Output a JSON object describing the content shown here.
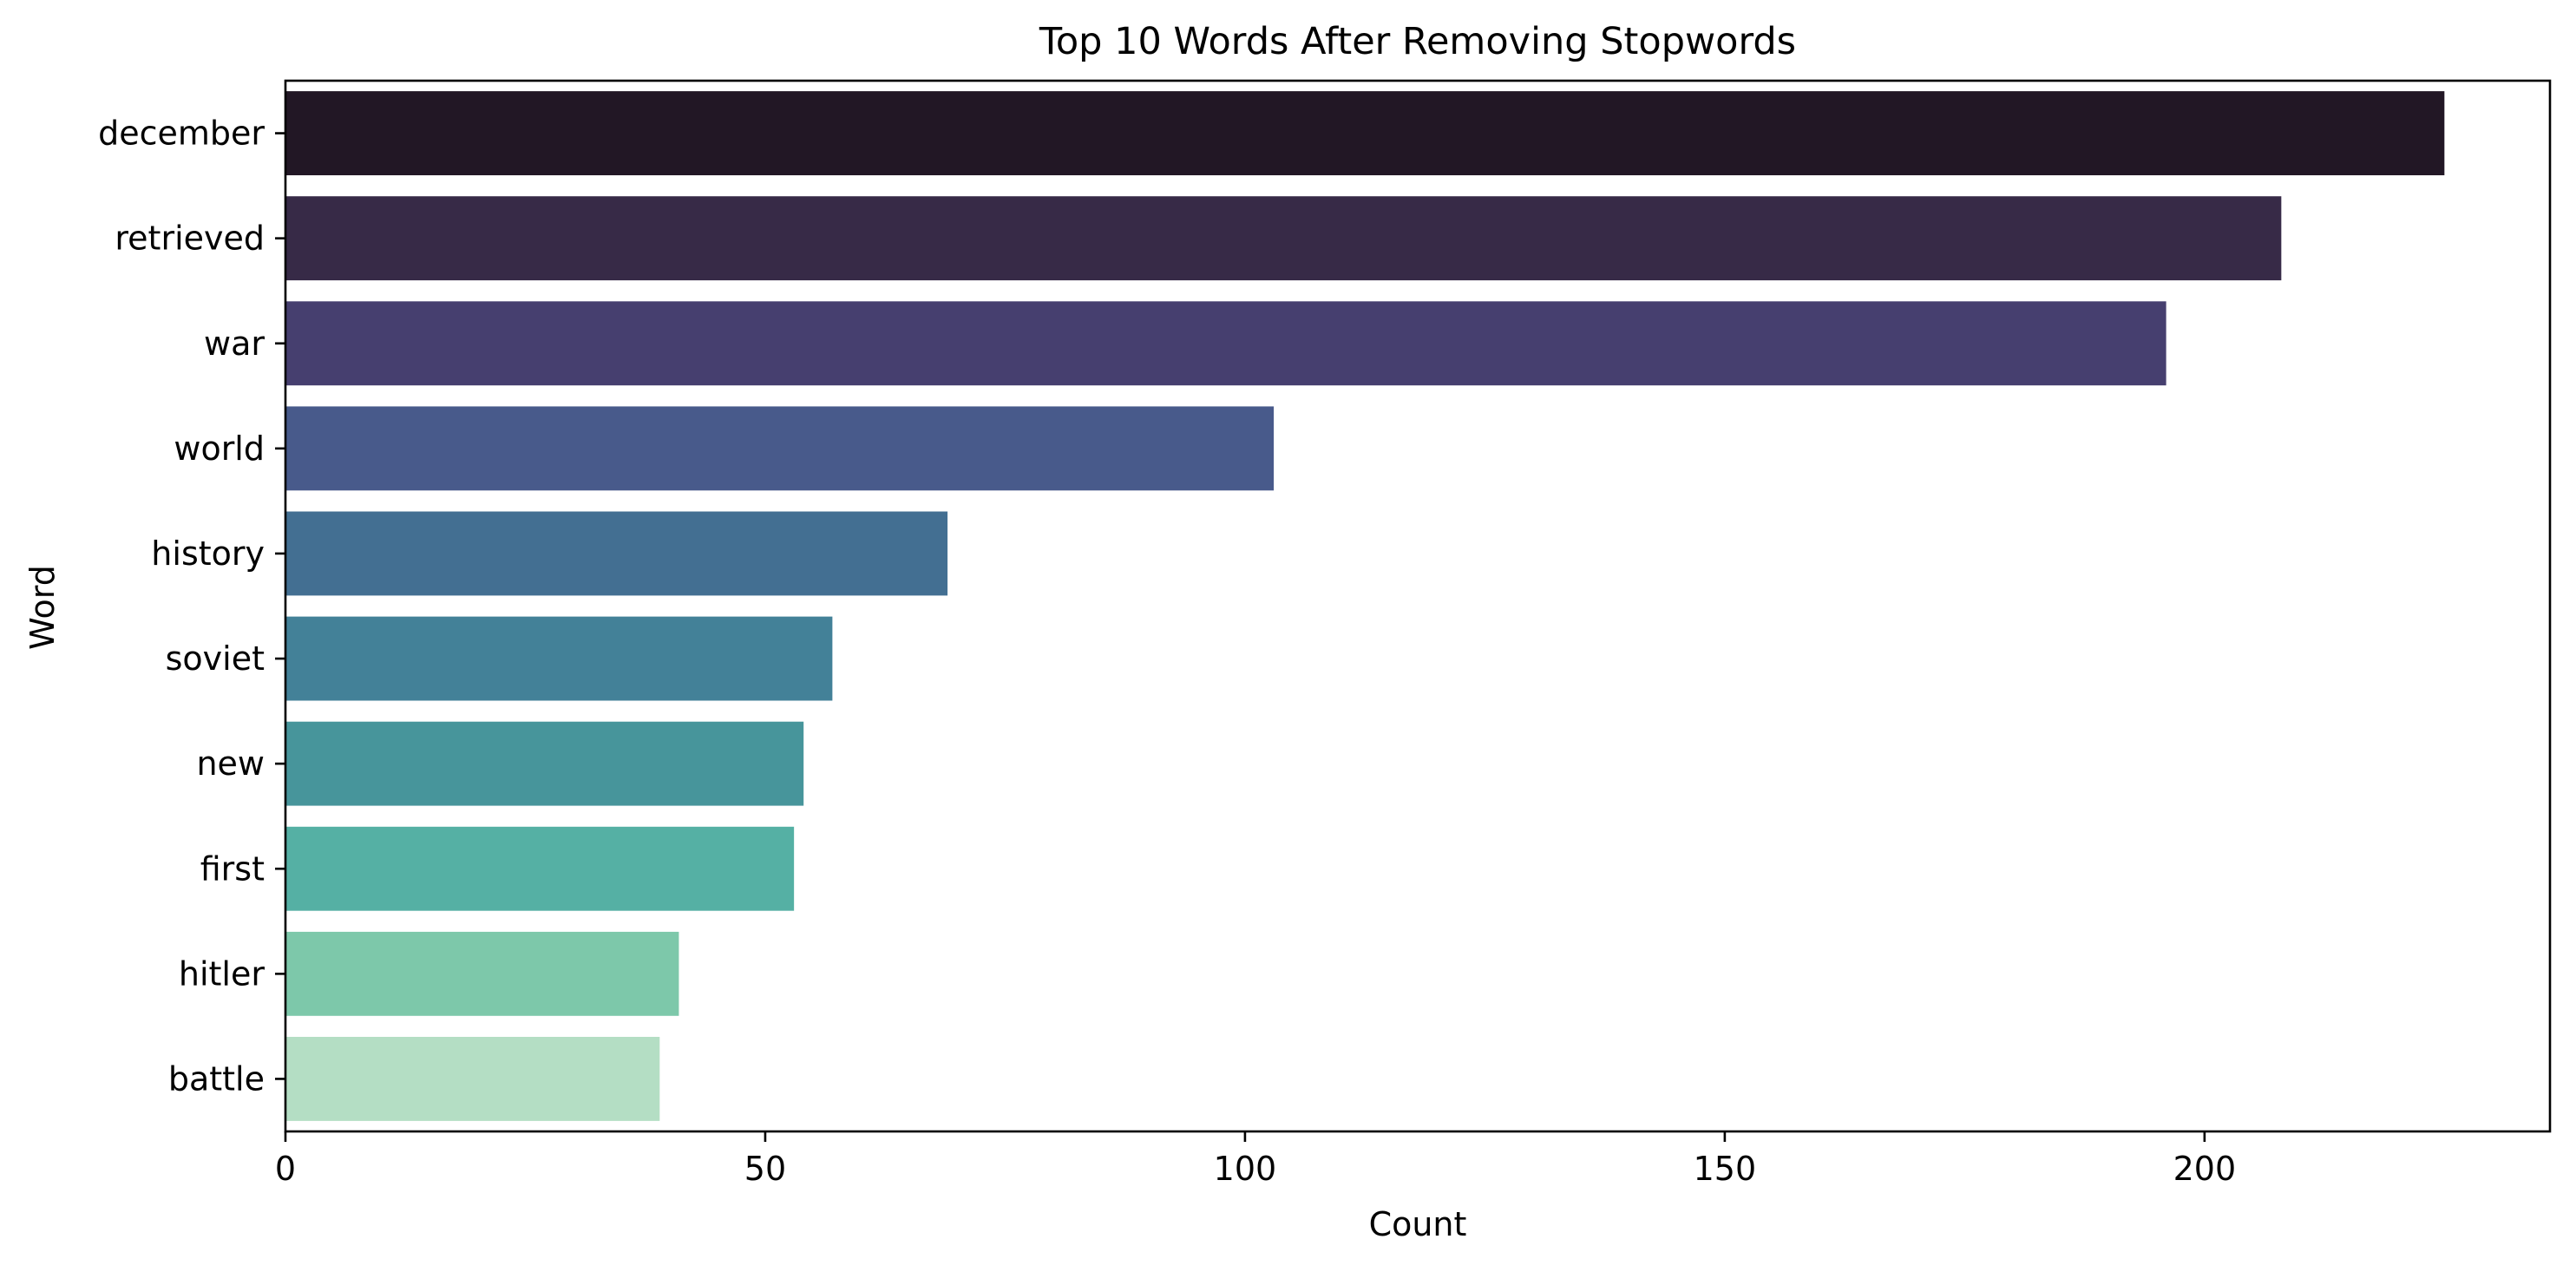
{
  "chart_data": {
    "type": "bar",
    "orientation": "horizontal",
    "title": "Top 10 Words After Removing Stopwords",
    "xlabel": "Count",
    "ylabel": "Word",
    "xlim": [
      0,
      236
    ],
    "x_ticks": [
      0,
      50,
      100,
      150,
      200
    ],
    "grid": false,
    "legend": "none",
    "categories": [
      "december",
      "retrieved",
      "war",
      "world",
      "history",
      "soviet",
      "new",
      "first",
      "hitler",
      "battle"
    ],
    "values": [
      225,
      208,
      196,
      103,
      69,
      57,
      54,
      53,
      41,
      39
    ],
    "colors": [
      "#221725",
      "#372a47",
      "#463f6f",
      "#485a8b",
      "#436f92",
      "#438198",
      "#47959b",
      "#55b0a4",
      "#7dc8aa",
      "#b4dec4"
    ]
  }
}
